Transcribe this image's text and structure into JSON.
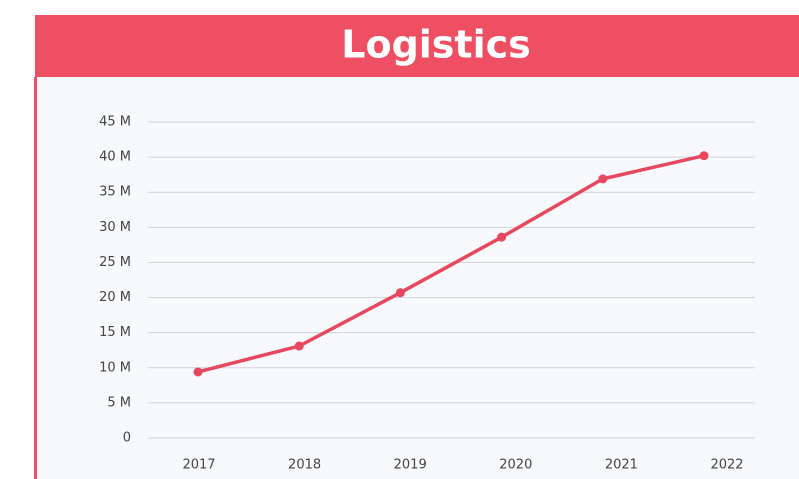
{
  "chart_data": {
    "type": "line",
    "title": "Logistics",
    "categories": [
      "2017",
      "2018",
      "2019",
      "2020",
      "2021",
      "2022"
    ],
    "values": [
      9.4,
      13.1,
      20.7,
      28.6,
      36.9,
      40.2
    ],
    "color": "#e8485d",
    "ylim": [
      0,
      45
    ],
    "yticks": [
      0,
      {
        "value": 5,
        "label": "5 M"
      },
      {
        "value": 10,
        "label": "10 M"
      },
      {
        "value": 15,
        "label": "15 M"
      },
      {
        "value": 20,
        "label": "20 M"
      },
      {
        "value": 25,
        "label": "25 M"
      },
      {
        "value": 30,
        "label": "30 M"
      },
      {
        "value": 35,
        "label": "35 M"
      },
      {
        "value": 40,
        "label": "40 M"
      },
      {
        "value": 45,
        "label": "45 M"
      }
    ],
    "grid": true
  }
}
